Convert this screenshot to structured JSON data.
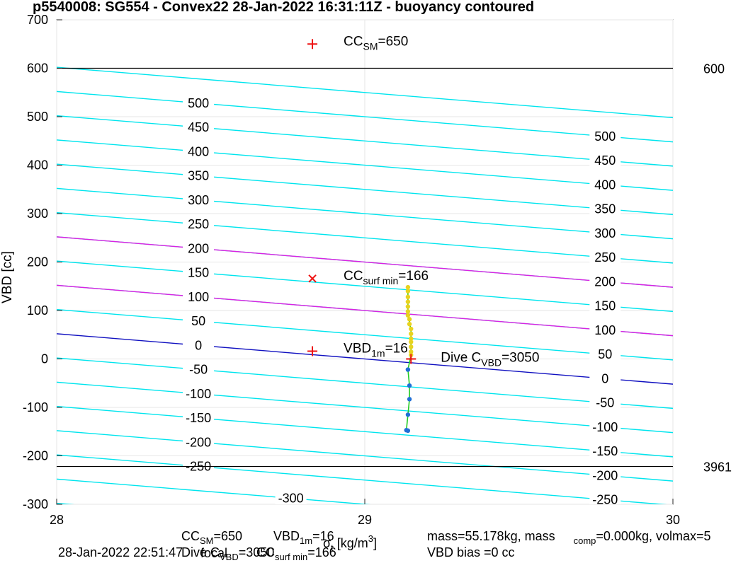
{
  "chart_data": {
    "type": "line",
    "title": "p5540008: SG554 - Convex22 28-Jan-2022 16:31:11Z - buoyancy contoured",
    "ylabel": "VBD [cc]",
    "xlim": [
      28,
      30
    ],
    "ylim": [
      -300,
      700
    ],
    "x_ticks": [
      "28",
      "29",
      "30"
    ],
    "y_ticks": [
      "-300",
      "-200",
      "-100",
      "0",
      "100",
      "200",
      "300",
      "400",
      "500",
      "600",
      "700"
    ],
    "grid": true,
    "contours": {
      "slope_cc_per_sigma": -52,
      "cyan_levels": [
        -300,
        -250,
        -200,
        -150,
        -100,
        -50,
        50,
        100,
        150,
        200,
        250,
        300,
        350,
        400,
        450,
        500
      ],
      "magenta_levels": [
        100,
        200
      ],
      "blue_levels": [
        0
      ],
      "left_labels": [
        "500",
        "450",
        "400",
        "350",
        "300",
        "250",
        "200",
        "150",
        "100",
        "50",
        "0",
        "-50",
        "-100",
        "-150",
        "-200",
        "-250",
        "-300"
      ],
      "right_labels": [
        "500",
        "450",
        "400",
        "350",
        "300",
        "250",
        "200",
        "150",
        "100",
        "50",
        "0",
        "-50",
        "-100",
        "-150",
        "-200",
        "-250"
      ]
    },
    "limit_lines": [
      {
        "y": 600,
        "label": "600"
      },
      {
        "y": -222,
        "label": "3961"
      }
    ],
    "markers": [
      {
        "x": 28.83,
        "y": 650,
        "symbol": "+",
        "label_main": "CC",
        "label_sub": "SM",
        "label_rest": "=650"
      },
      {
        "x": 28.83,
        "y": 166,
        "symbol": "x",
        "label_main": "CC",
        "label_sub": "surf min",
        "label_rest": "=166"
      },
      {
        "x": 28.83,
        "y": 16,
        "symbol": "+",
        "label_main": "VBD",
        "label_sub": "1m",
        "label_rest": "=16"
      },
      {
        "x": 29.15,
        "y": 0,
        "symbol": "+",
        "label_main": "Dive C",
        "label_sub": "VBD",
        "label_rest": "=3050"
      }
    ],
    "series": [
      {
        "marker_color": "#e8d31f",
        "points": [
          [
            29.14,
            148
          ],
          [
            29.14,
            140
          ],
          [
            29.14,
            128
          ],
          [
            29.14,
            118
          ],
          [
            29.14,
            108
          ],
          [
            29.14,
            98
          ],
          [
            29.14,
            90
          ],
          [
            29.145,
            82
          ],
          [
            29.145,
            72
          ],
          [
            29.15,
            62
          ],
          [
            29.15,
            52
          ],
          [
            29.15,
            42
          ],
          [
            29.15,
            35
          ],
          [
            29.15,
            25
          ],
          [
            29.15,
            15
          ],
          [
            29.15,
            8
          ]
        ]
      },
      {
        "marker_color": "#1f6fd6",
        "points": [
          [
            29.14,
            -22
          ],
          [
            29.145,
            -55
          ],
          [
            29.145,
            -83
          ],
          [
            29.14,
            -115
          ],
          [
            29.135,
            -147
          ],
          [
            29.14,
            -148
          ]
        ]
      }
    ],
    "trace_color": "#22cc22"
  },
  "footer": {
    "line1": {
      "cc_main": "CC",
      "cc_sub": "SM",
      "cc_rest": "=650",
      "vbd_main": "VBD",
      "vbd_sub": "1m",
      "vbd_rest": "=16",
      "mass_main": "mass=55.178kg, mass",
      "mass_sub": "comp",
      "mass_rest": "=0.000kg, volmax=5"
    },
    "line2": {
      "date": "28-Jan-2022 22:51:47",
      "dive": "Dive C",
      "dive_sub": "VBD",
      "dive_rest": "=3050",
      "focal": "focal",
      "cs_main": "CC",
      "cs_sub": "surf min",
      "cs_rest": "=166",
      "bias": "VBD bias =0 cc"
    },
    "xlabel_main": "σ",
    "xlabel_sub": "t",
    "xlabel_rest": " [kg/m",
    "xlabel_sup": "3",
    "xlabel_end": "]"
  }
}
